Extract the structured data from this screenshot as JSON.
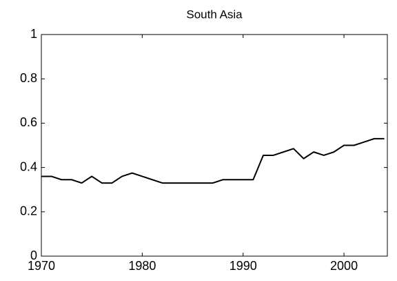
{
  "chart_data": {
    "type": "line",
    "title": "South Asia",
    "x": [
      1970,
      1971,
      1972,
      1973,
      1974,
      1975,
      1976,
      1977,
      1978,
      1979,
      1980,
      1981,
      1982,
      1983,
      1984,
      1985,
      1986,
      1987,
      1988,
      1989,
      1990,
      1991,
      1992,
      1993,
      1994,
      1995,
      1996,
      1997,
      1998,
      1999,
      2000,
      2001,
      2002,
      2003,
      2004
    ],
    "series": [
      {
        "name": "South Asia",
        "color": "#000000",
        "values": [
          0.36,
          0.36,
          0.345,
          0.345,
          0.33,
          0.36,
          0.33,
          0.33,
          0.36,
          0.375,
          0.36,
          0.345,
          0.33,
          0.33,
          0.33,
          0.33,
          0.33,
          0.33,
          0.345,
          0.345,
          0.345,
          0.345,
          0.455,
          0.455,
          0.47,
          0.485,
          0.44,
          0.47,
          0.455,
          0.47,
          0.5,
          0.5,
          0.515,
          0.53,
          0.53
        ]
      }
    ],
    "xlim": [
      1970,
      2004.3
    ],
    "xticks": [
      1970,
      1980,
      1990,
      2000
    ],
    "ylim": [
      0,
      1
    ],
    "yticks": [
      0,
      0.2,
      0.4,
      0.6,
      0.8,
      1
    ],
    "grid": false
  }
}
